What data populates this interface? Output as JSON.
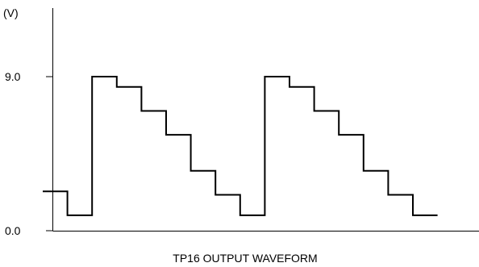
{
  "chart_data": {
    "type": "line",
    "title": "TP16 OUTPUT WAVEFORM",
    "ylabel": "(V)",
    "xlabel": "",
    "ylim": [
      0,
      13.9
    ],
    "xlim": [
      0,
      17.8
    ],
    "y_ticks": [
      {
        "value": 9.0,
        "label": "9.0"
      },
      {
        "value": 0.0,
        "label": "0.0"
      }
    ],
    "grid": false,
    "legend": "none",
    "series": [
      {
        "step": "post",
        "x": [
          0,
          1,
          2,
          3,
          4,
          5,
          6,
          7,
          8,
          9,
          10,
          11,
          12,
          13,
          14,
          15,
          16
        ],
        "y": [
          2.3,
          0.9,
          9.0,
          8.4,
          7.0,
          5.6,
          3.5,
          2.1,
          0.9,
          9.0,
          8.4,
          7.0,
          5.6,
          3.5,
          2.1,
          0.9,
          0.9
        ]
      }
    ],
    "line_color": "#000000"
  }
}
